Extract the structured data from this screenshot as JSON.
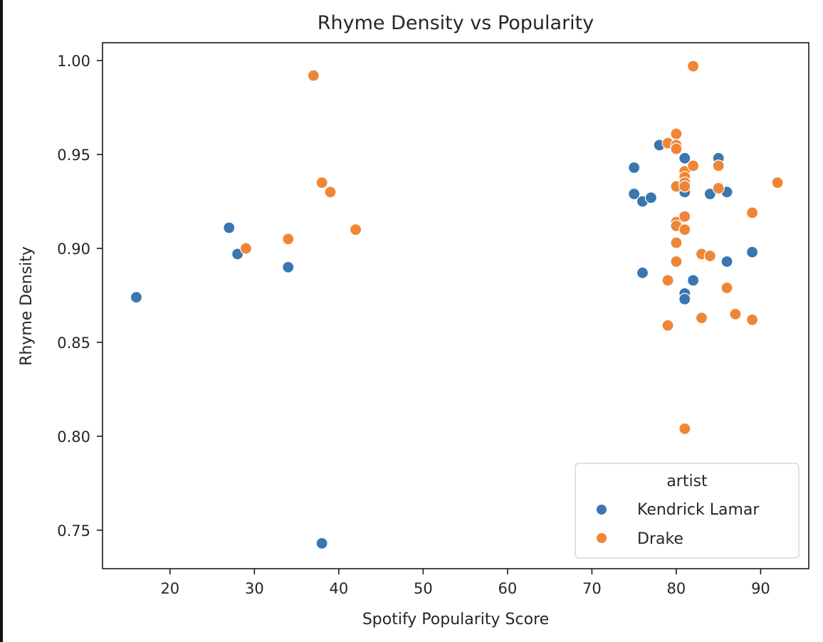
{
  "chart_data": {
    "type": "scatter",
    "title": "Rhyme Density vs Popularity",
    "xlabel": "Spotify Popularity Score",
    "ylabel": "Rhyme Density",
    "xlim": [
      12.0,
      95.7
    ],
    "ylim": [
      0.7295,
      1.0095
    ],
    "xticks": [
      20,
      30,
      40,
      50,
      60,
      70,
      80,
      90
    ],
    "xtick_labels": [
      "20",
      "30",
      "40",
      "50",
      "60",
      "70",
      "80",
      "90"
    ],
    "yticks": [
      0.75,
      0.8,
      0.85,
      0.9,
      0.95,
      1.0
    ],
    "ytick_labels": [
      "0.75",
      "0.80",
      "0.85",
      "0.90",
      "0.95",
      "1.00"
    ],
    "grid": false,
    "legend": {
      "title": "artist",
      "position": "lower right",
      "entries": [
        "Kendrick Lamar",
        "Drake"
      ]
    },
    "series": [
      {
        "name": "Kendrick Lamar",
        "color": "#3a76af",
        "points": [
          {
            "x": 16,
            "y": 0.874
          },
          {
            "x": 27,
            "y": 0.911
          },
          {
            "x": 28,
            "y": 0.897
          },
          {
            "x": 34,
            "y": 0.89
          },
          {
            "x": 38,
            "y": 0.743
          },
          {
            "x": 75,
            "y": 0.943
          },
          {
            "x": 75,
            "y": 0.929
          },
          {
            "x": 76,
            "y": 0.925
          },
          {
            "x": 76,
            "y": 0.887
          },
          {
            "x": 77,
            "y": 0.927
          },
          {
            "x": 78,
            "y": 0.955
          },
          {
            "x": 81,
            "y": 0.948
          },
          {
            "x": 81,
            "y": 0.93
          },
          {
            "x": 81,
            "y": 0.876
          },
          {
            "x": 81,
            "y": 0.873
          },
          {
            "x": 82,
            "y": 0.883
          },
          {
            "x": 84,
            "y": 0.929
          },
          {
            "x": 85,
            "y": 0.948
          },
          {
            "x": 86,
            "y": 0.93
          },
          {
            "x": 86,
            "y": 0.893
          },
          {
            "x": 89,
            "y": 0.898
          }
        ]
      },
      {
        "name": "Drake",
        "color": "#ef8636",
        "points": [
          {
            "x": 29,
            "y": 0.9
          },
          {
            "x": 34,
            "y": 0.905
          },
          {
            "x": 37,
            "y": 0.992
          },
          {
            "x": 38,
            "y": 0.935
          },
          {
            "x": 39,
            "y": 0.93
          },
          {
            "x": 42,
            "y": 0.91
          },
          {
            "x": 79,
            "y": 0.956
          },
          {
            "x": 79,
            "y": 0.883
          },
          {
            "x": 79,
            "y": 0.859
          },
          {
            "x": 80,
            "y": 0.961
          },
          {
            "x": 80,
            "y": 0.955
          },
          {
            "x": 80,
            "y": 0.953
          },
          {
            "x": 80,
            "y": 0.933
          },
          {
            "x": 80,
            "y": 0.914
          },
          {
            "x": 80,
            "y": 0.912
          },
          {
            "x": 80,
            "y": 0.903
          },
          {
            "x": 80,
            "y": 0.893
          },
          {
            "x": 81,
            "y": 0.941
          },
          {
            "x": 81,
            "y": 0.938
          },
          {
            "x": 81,
            "y": 0.935
          },
          {
            "x": 81,
            "y": 0.933
          },
          {
            "x": 81,
            "y": 0.917
          },
          {
            "x": 81,
            "y": 0.91
          },
          {
            "x": 81,
            "y": 0.804
          },
          {
            "x": 82,
            "y": 0.997
          },
          {
            "x": 82,
            "y": 0.944
          },
          {
            "x": 83,
            "y": 0.897
          },
          {
            "x": 83,
            "y": 0.863
          },
          {
            "x": 84,
            "y": 0.896
          },
          {
            "x": 85,
            "y": 0.944
          },
          {
            "x": 85,
            "y": 0.932
          },
          {
            "x": 86,
            "y": 0.879
          },
          {
            "x": 87,
            "y": 0.865
          },
          {
            "x": 89,
            "y": 0.919
          },
          {
            "x": 89,
            "y": 0.862
          },
          {
            "x": 92,
            "y": 0.935
          }
        ]
      }
    ]
  }
}
